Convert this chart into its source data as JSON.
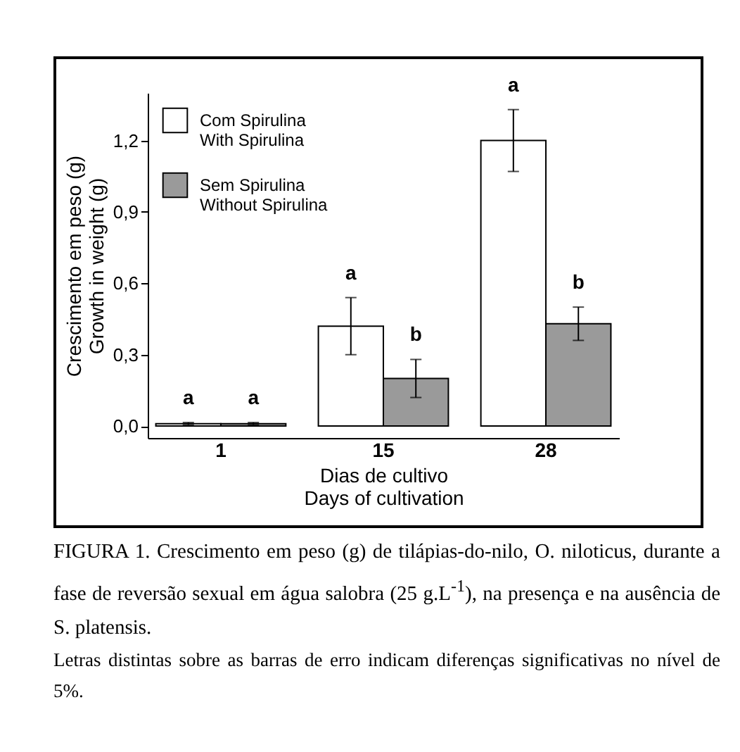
{
  "chart_data": {
    "type": "bar",
    "title": "FIGURA 1. Crescimento em peso (g) de tilápias-do-nilo, O. niloticus, durante a fase de reversão sexual em água salobra (25 g.L$^{-1}$), na presença e na ausência de S. platensis.",
    "xlabel": "Dias de cultivo\nDays of cultivation",
    "ylabel": "Crescimento em peso (g)\nGrowth in weight (g)",
    "categories": [
      "1",
      "15",
      "28"
    ],
    "series": [
      {
        "name": "Com Spirulina\nWith Spirulina",
        "color": "#ffffff",
        "values": [
          0.01,
          0.42,
          1.2
        ],
        "errors": [
          0.005,
          0.12,
          0.13
        ]
      },
      {
        "name": "Sem Spirulina\nWithout Spirulina",
        "color": "#9a9a9a",
        "values": [
          0.01,
          0.2,
          0.43
        ],
        "errors": [
          0.005,
          0.08,
          0.07
        ]
      }
    ],
    "ylim": [
      -0.05,
      1.4
    ],
    "yticks": [
      {
        "value": 0,
        "label": "0,0"
      },
      {
        "value": 0.3,
        "label": "0,3"
      },
      {
        "value": 0.6,
        "label": "0,6"
      },
      {
        "value": 0.9,
        "label": "0,9"
      },
      {
        "value": 1.2,
        "label": "1,2"
      }
    ],
    "legend": "top left",
    "grid": false,
    "annotations": [
      "a",
      "a",
      "a",
      "b",
      "a",
      "b",
      "Letras distintas sobre as barras de erro indicam diferenças significativas no nível de 5%."
    ]
  }
}
